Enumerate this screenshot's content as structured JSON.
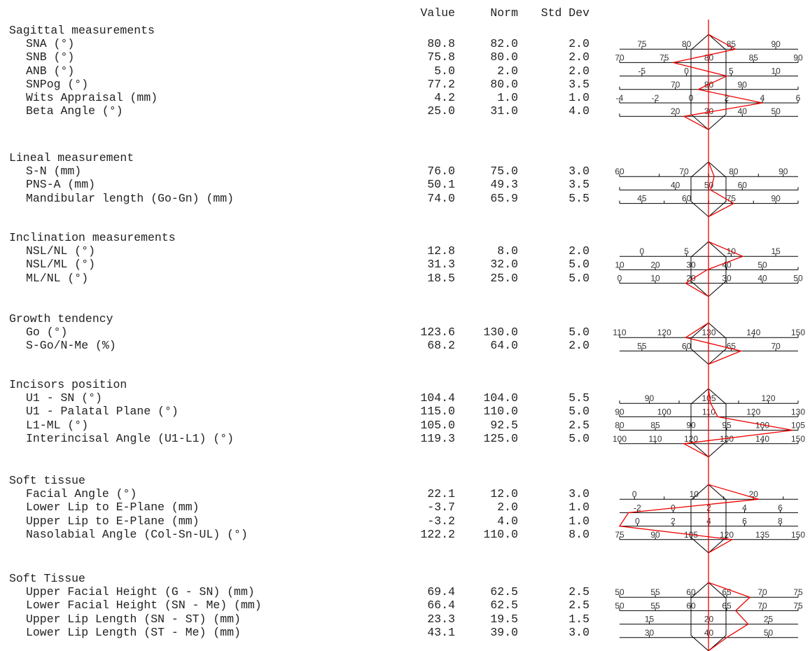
{
  "columns": {
    "value": "Value",
    "norm": "Norm",
    "std": "Std Dev"
  },
  "sections": [
    {
      "title": "Sagittal measurements",
      "rows": [
        {
          "label": "SNA (°)",
          "value": "80.8",
          "norm": "82.0",
          "std": "2.0",
          "ticks": [
            [
              "75",
              0.5
            ],
            [
              "80",
              0.5
            ],
            [
              "85",
              0.5
            ],
            [
              "90",
              0.5
            ]
          ],
          "mark": 0.65
        },
        {
          "label": "SNB (°)",
          "value": "75.8",
          "norm": "80.0",
          "std": "2.0",
          "ticks": [
            [
              "70",
              0
            ],
            [
              "75",
              0
            ],
            [
              "80",
              0
            ],
            [
              "85",
              0
            ],
            [
              "90",
              0
            ]
          ],
          "mark": 0.3
        },
        {
          "label": "ANB (°)",
          "value": "5.0",
          "norm": "2.0",
          "std": "2.0",
          "ticks": [
            [
              "-5",
              0.5
            ],
            [
              "0",
              0.5
            ],
            [
              "5",
              0.5
            ],
            [
              "10",
              0.5
            ]
          ],
          "mark": 0.6
        },
        {
          "label": "SNPog (°)",
          "value": "77.2",
          "norm": "80.0",
          "std": "3.5",
          "ticks": [
            [
              "",
              0
            ],
            [
              "70",
              0.5
            ],
            [
              "80",
              0.5
            ],
            [
              "90",
              0.5
            ],
            [
              "",
              0
            ]
          ],
          "mark": 0.44
        },
        {
          "label": "Wits Appraisal (mm)",
          "value": "4.2",
          "norm": "1.0",
          "std": "1.0",
          "ticks": [
            [
              "-4",
              0
            ],
            [
              "-2",
              0
            ],
            [
              "0",
              0
            ],
            [
              "2",
              0
            ],
            [
              "4",
              0
            ],
            [
              "6",
              0
            ]
          ],
          "mark": 0.8
        },
        {
          "label": "Beta Angle (°)",
          "value": "25.0",
          "norm": "31.0",
          "std": "4.0",
          "ticks": [
            [
              "",
              0
            ],
            [
              "20",
              0.5
            ],
            [
              "30",
              0.5
            ],
            [
              "40",
              0.5
            ],
            [
              "50",
              0.5
            ]
          ],
          "mark": 0.36
        }
      ]
    },
    {
      "title": "Lineal measurement",
      "rows": [
        {
          "label": "S-N (mm)",
          "value": "76.0",
          "norm": "75.0",
          "std": "3.0",
          "ticks": [
            [
              "60",
              0
            ],
            [
              "",
              0.25
            ],
            [
              "70",
              0.5
            ],
            [
              "",
              0.75
            ],
            [
              "80",
              1
            ],
            [
              "",
              1.25
            ],
            [
              "90",
              1.5
            ]
          ],
          "mark": 0.53
        },
        {
          "label": "PNS-A (mm)",
          "value": "50.1",
          "norm": "49.3",
          "std": "3.5",
          "ticks": [
            [
              "",
              0
            ],
            [
              "40",
              0.5
            ],
            [
              "50",
              0.5
            ],
            [
              "60",
              0.5
            ],
            [
              "",
              0
            ]
          ],
          "mark": 0.51
        },
        {
          "label": "Mandibular length (Go-Gn) (mm)",
          "value": "74.0",
          "norm": "65.9",
          "std": "5.5",
          "ticks": [
            [
              "",
              0
            ],
            [
              "45",
              0
            ],
            [
              "",
              0
            ],
            [
              "60",
              0
            ],
            [
              "",
              0
            ],
            [
              "75",
              0
            ],
            [
              "",
              0
            ],
            [
              "90",
              0
            ],
            [
              "",
              0
            ]
          ],
          "mark": 0.64
        }
      ]
    },
    {
      "title": "Inclination measurements",
      "rows": [
        {
          "label": "NSL/NL (°)",
          "value": "12.8",
          "norm": "8.0",
          "std": "2.0",
          "ticks": [
            [
              "0",
              0.5
            ],
            [
              "5",
              0.5
            ],
            [
              "10",
              0.5
            ],
            [
              "15",
              0.5
            ]
          ],
          "mark": 0.69
        },
        {
          "label": "NSL/ML (°)",
          "value": "31.3",
          "norm": "32.0",
          "std": "5.0",
          "ticks": [
            [
              "10",
              0
            ],
            [
              "20",
              0
            ],
            [
              "30",
              0
            ],
            [
              "40",
              0
            ],
            [
              "50",
              0
            ],
            [
              "",
              0
            ]
          ],
          "mark": 0.49
        },
        {
          "label": "ML/NL (°)",
          "value": "18.5",
          "norm": "25.0",
          "std": "5.0",
          "ticks": [
            [
              "0",
              0
            ],
            [
              "10",
              0
            ],
            [
              "20",
              0
            ],
            [
              "30",
              0
            ],
            [
              "40",
              0
            ],
            [
              "50",
              0
            ]
          ],
          "mark": 0.37
        }
      ]
    },
    {
      "title": "Growth tendency",
      "rows": [
        {
          "label": "Go (°)",
          "value": "123.6",
          "norm": "130.0",
          "std": "5.0",
          "ticks": [
            [
              "110",
              0
            ],
            [
              "120",
              0
            ],
            [
              "130",
              0
            ],
            [
              "140",
              0
            ],
            [
              "150",
              0
            ]
          ],
          "mark": 0.37
        },
        {
          "label": "S-Go/N-Me (%)",
          "value": "68.2",
          "norm": "64.0",
          "std": "2.0",
          "ticks": [
            [
              "55",
              0.5
            ],
            [
              "60",
              0.5
            ],
            [
              "65",
              0.5
            ],
            [
              "70",
              0.5
            ]
          ],
          "mark": 0.68
        }
      ]
    },
    {
      "title": "Incisors position",
      "rows": [
        {
          "label": "U1 - SN (°)",
          "value": "104.4",
          "norm": "104.0",
          "std": "5.5",
          "ticks": [
            [
              "",
              0
            ],
            [
              "90",
              0
            ],
            [
              "",
              0
            ],
            [
              "105",
              0
            ],
            [
              "",
              0
            ],
            [
              "120",
              0
            ],
            [
              "",
              0
            ]
          ],
          "mark": 0.51
        },
        {
          "label": "U1 - Palatal Plane (°)",
          "value": "115.0",
          "norm": "110.0",
          "std": "5.0",
          "ticks": [
            [
              "90",
              0
            ],
            [
              "100",
              0
            ],
            [
              "110",
              0
            ],
            [
              "120",
              0
            ],
            [
              "130",
              0
            ]
          ],
          "mark": 0.55
        },
        {
          "label": "L1-ML (°)",
          "value": "105.0",
          "norm": "92.5",
          "std": "2.5",
          "ticks": [
            [
              "80",
              0
            ],
            [
              "85",
              0
            ],
            [
              "90",
              0
            ],
            [
              "95",
              0
            ],
            [
              "100",
              0
            ],
            [
              "105",
              0
            ]
          ],
          "mark": 0.97
        },
        {
          "label": "Interincisal Angle (U1-L1) (°)",
          "value": "119.3",
          "norm": "125.0",
          "std": "5.0",
          "ticks": [
            [
              "100",
              0
            ],
            [
              "110",
              0
            ],
            [
              "120",
              0
            ],
            [
              "130",
              0
            ],
            [
              "140",
              0
            ],
            [
              "150",
              0
            ]
          ],
          "mark": 0.36
        }
      ]
    },
    {
      "title": "Soft tissue",
      "rows": [
        {
          "label": "Facial Angle (°)",
          "value": "22.1",
          "norm": "12.0",
          "std": "3.0",
          "ticks": [
            [
              "0",
              0.5
            ],
            [
              "",
              0.5
            ],
            [
              "10",
              0.5
            ],
            [
              "",
              0.5
            ],
            [
              "20",
              0.5
            ],
            [
              "",
              0.5
            ]
          ],
          "mark": 0.78
        },
        {
          "label": "Lower Lip to E-Plane (mm)",
          "value": "-3.7",
          "norm": "2.0",
          "std": "1.0",
          "ticks": [
            [
              "-2",
              0.5
            ],
            [
              "0",
              0.5
            ],
            [
              "2",
              0.5
            ],
            [
              "4",
              0.5
            ],
            [
              "6",
              0.5
            ]
          ],
          "mark": 0.05
        },
        {
          "label": "Upper Lip to E-Plane (mm)",
          "value": "-3.2",
          "norm": "4.0",
          "std": "1.0",
          "ticks": [
            [
              "0",
              0.5
            ],
            [
              "2",
              0.5
            ],
            [
              "4",
              0.5
            ],
            [
              "6",
              0.5
            ],
            [
              "8",
              0.5
            ]
          ],
          "mark": 0.0
        },
        {
          "label": "Nasolabial Angle (Col-Sn-UL) (°)",
          "value": "122.2",
          "norm": "110.0",
          "std": "8.0",
          "ticks": [
            [
              "75",
              0
            ],
            [
              "90",
              0
            ],
            [
              "105",
              0
            ],
            [
              "120",
              0
            ],
            [
              "135",
              0
            ],
            [
              "150",
              0
            ]
          ],
          "mark": 0.63
        }
      ]
    },
    {
      "title": "Soft Tissue",
      "rows": [
        {
          "label": "Upper Facial Height (G - SN) (mm)",
          "value": "69.4",
          "norm": "62.5",
          "std": "2.5",
          "ticks": [
            [
              "50",
              0
            ],
            [
              "55",
              0
            ],
            [
              "60",
              0
            ],
            [
              "65",
              0
            ],
            [
              "70",
              0
            ],
            [
              "75",
              0
            ]
          ],
          "mark": 0.73
        },
        {
          "label": "Lower Facial Height (SN - Me) (mm)",
          "value": "66.4",
          "norm": "62.5",
          "std": "2.5",
          "ticks": [
            [
              "50",
              0
            ],
            [
              "55",
              0
            ],
            [
              "60",
              0
            ],
            [
              "65",
              0
            ],
            [
              "70",
              0
            ],
            [
              "75",
              0
            ]
          ],
          "mark": 0.65
        },
        {
          "label": "Upper Lip Length (SN - ST) (mm)",
          "value": "23.3",
          "norm": "19.5",
          "std": "1.5",
          "ticks": [
            [
              "15",
              0.5
            ],
            [
              "20",
              0.5
            ],
            [
              "25",
              0.5
            ]
          ],
          "mark": 0.72
        },
        {
          "label": "Lower Lip Length (ST - Me) (mm)",
          "value": "43.1",
          "norm": "39.0",
          "std": "3.0",
          "ticks": [
            [
              "30",
              0.5
            ],
            [
              "40",
              0.5
            ],
            [
              "50",
              0.5
            ]
          ],
          "mark": 0.6
        }
      ]
    }
  ]
}
